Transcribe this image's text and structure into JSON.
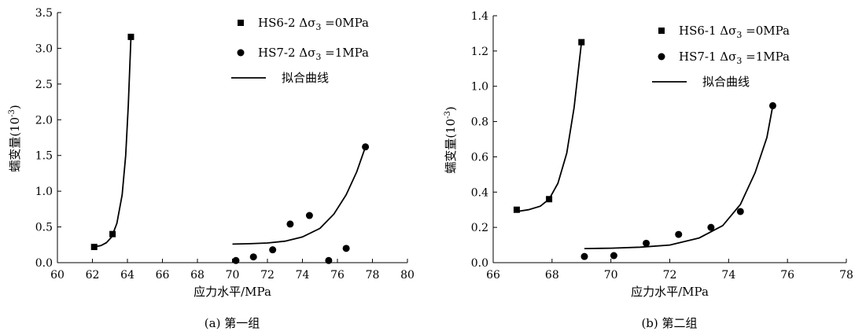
{
  "chart_data": [
    {
      "type": "scatter",
      "caption": "(a) 第一组",
      "xlabel": "应力水平/MPa",
      "ylabel": "蠕变量(10",
      "ylabel_sup": "-3",
      "ylabel_close": ")",
      "xlim": [
        60,
        80
      ],
      "ylim": [
        0,
        3.5
      ],
      "xticks": [
        "60",
        "62",
        "64",
        "66",
        "68",
        "70",
        "72",
        "74",
        "76",
        "78",
        "80"
      ],
      "yticks": [
        "0.0",
        "0.5",
        "1.0",
        "1.5",
        "2.0",
        "2.5",
        "3.0",
        "3.5"
      ],
      "legend_position": "top-right",
      "series": [
        {
          "name": "HS6-2",
          "legend_suffix": " =0MPa",
          "marker": "square",
          "points": [
            [
              62.1,
              0.22
            ],
            [
              63.15,
              0.4
            ],
            [
              64.2,
              3.16
            ]
          ],
          "fit": [
            [
              62.1,
              0.22
            ],
            [
              62.5,
              0.24
            ],
            [
              62.8,
              0.28
            ],
            [
              63.1,
              0.36
            ],
            [
              63.4,
              0.55
            ],
            [
              63.7,
              0.95
            ],
            [
              63.9,
              1.5
            ],
            [
              64.05,
              2.2
            ],
            [
              64.2,
              3.16
            ]
          ]
        },
        {
          "name": "HS7-2",
          "legend_suffix": " =1MPa",
          "marker": "circle",
          "points": [
            [
              70.2,
              0.03
            ],
            [
              71.2,
              0.08
            ],
            [
              72.3,
              0.18
            ],
            [
              73.3,
              0.54
            ],
            [
              74.4,
              0.66
            ],
            [
              75.5,
              0.03
            ],
            [
              76.5,
              0.2
            ],
            [
              77.6,
              1.62
            ]
          ],
          "fit": [
            [
              70.0,
              0.26
            ],
            [
              71.0,
              0.265
            ],
            [
              72.0,
              0.275
            ],
            [
              73.0,
              0.3
            ],
            [
              74.0,
              0.36
            ],
            [
              75.0,
              0.48
            ],
            [
              75.8,
              0.68
            ],
            [
              76.5,
              0.95
            ],
            [
              77.1,
              1.27
            ],
            [
              77.6,
              1.62
            ]
          ]
        }
      ],
      "legend_fit_label": "拟合曲线",
      "legend_delta_label": "Δσ",
      "legend_delta_sub": "3"
    },
    {
      "type": "scatter",
      "caption": "(b) 第二组",
      "xlabel": "应力水平/MPa",
      "ylabel": "蠕变量(10",
      "ylabel_sup": "-3",
      "ylabel_close": ")",
      "xlim": [
        66,
        78
      ],
      "ylim": [
        0,
        1.4
      ],
      "xticks": [
        "66",
        "68",
        "70",
        "72",
        "74",
        "76",
        "78"
      ],
      "yticks": [
        "0.0",
        "0.2",
        "0.4",
        "0.6",
        "0.8",
        "1.0",
        "1.2",
        "1.4"
      ],
      "legend_position": "top-right",
      "series": [
        {
          "name": "HS6-1",
          "legend_suffix": " =0MPa",
          "marker": "square",
          "points": [
            [
              66.8,
              0.3
            ],
            [
              67.9,
              0.36
            ],
            [
              69.0,
              1.25
            ]
          ],
          "fit": [
            [
              66.8,
              0.29
            ],
            [
              67.2,
              0.3
            ],
            [
              67.6,
              0.32
            ],
            [
              67.9,
              0.36
            ],
            [
              68.2,
              0.45
            ],
            [
              68.5,
              0.62
            ],
            [
              68.75,
              0.88
            ],
            [
              69.0,
              1.25
            ]
          ]
        },
        {
          "name": "HS7-1",
          "legend_suffix": " =1MPa",
          "marker": "circle",
          "points": [
            [
              69.1,
              0.035
            ],
            [
              70.1,
              0.04
            ],
            [
              71.2,
              0.11
            ],
            [
              72.3,
              0.16
            ],
            [
              73.4,
              0.2
            ],
            [
              74.4,
              0.29
            ],
            [
              75.5,
              0.89
            ]
          ],
          "fit": [
            [
              69.1,
              0.08
            ],
            [
              70.0,
              0.082
            ],
            [
              71.0,
              0.088
            ],
            [
              72.0,
              0.1
            ],
            [
              73.0,
              0.14
            ],
            [
              73.8,
              0.21
            ],
            [
              74.4,
              0.33
            ],
            [
              74.9,
              0.51
            ],
            [
              75.3,
              0.71
            ],
            [
              75.5,
              0.89
            ]
          ]
        }
      ],
      "legend_fit_label": "拟合曲线",
      "legend_delta_label": "Δσ",
      "legend_delta_sub": "3"
    }
  ]
}
